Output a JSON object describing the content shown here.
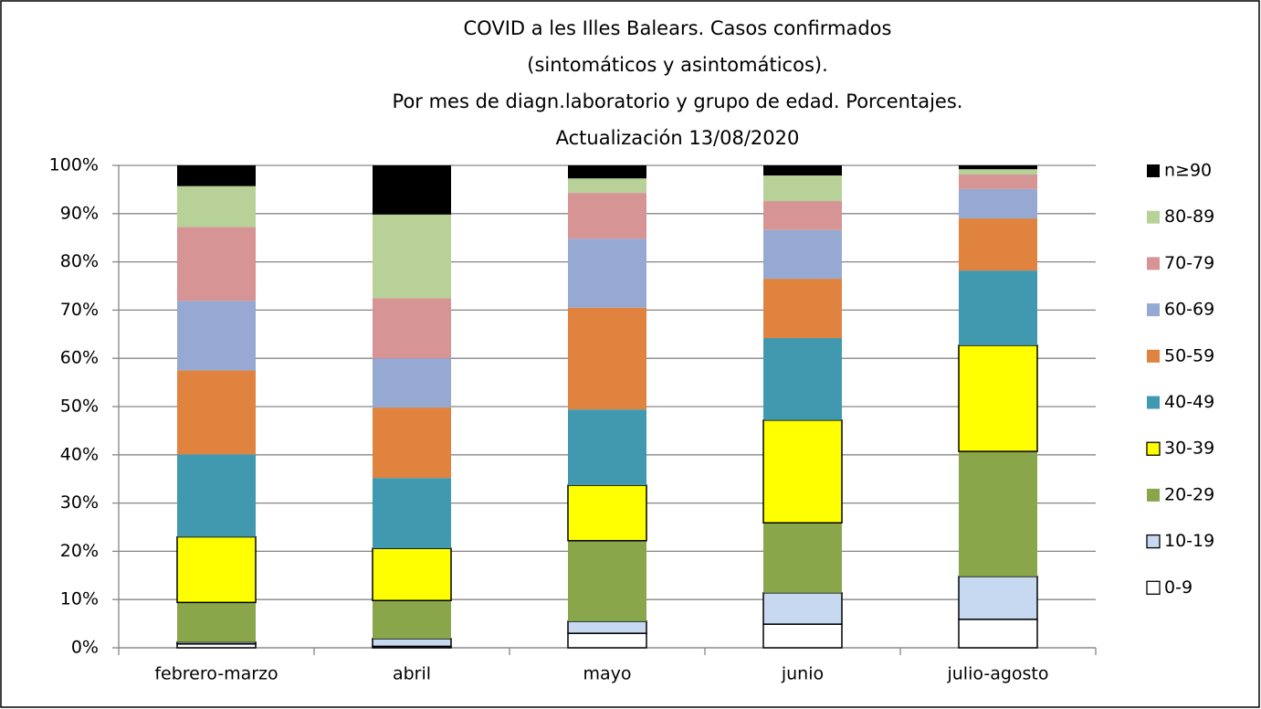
{
  "chart_data": {
    "type": "stacked_bar",
    "title": [
      "COVID a les Illes Balears.  Casos confirmados",
      "(sintomáticos y asintomáticos).",
      "Por mes de diagn.laboratorio  y grupo de edad. Porcentajes.",
      "Actualización  13/08/2020"
    ],
    "categories": [
      "febrero-marzo",
      "abril",
      "mayo",
      "junio",
      "julio-agosto"
    ],
    "series": [
      {
        "name": "0-9",
        "color": "#ffffff",
        "edgecolor": "#000000",
        "values": [
          0.8,
          0.3,
          3.0,
          4.9,
          5.9
        ]
      },
      {
        "name": "10-19",
        "color": "#c6d9f1",
        "edgecolor": "#000000",
        "values": [
          0.4,
          1.6,
          2.5,
          6.5,
          8.9
        ]
      },
      {
        "name": "20-29",
        "color": "#8aa64b",
        "values": [
          8.2,
          7.9,
          16.7,
          14.5,
          25.9
        ]
      },
      {
        "name": "30-39",
        "color": "#ffff00",
        "edgecolor": "#000000",
        "values": [
          13.6,
          10.8,
          11.5,
          21.3,
          22.0
        ]
      },
      {
        "name": "40-49",
        "color": "#4199b0",
        "values": [
          17.1,
          14.6,
          15.7,
          17.0,
          15.5
        ]
      },
      {
        "name": "50-59",
        "color": "#df833e",
        "values": [
          17.4,
          14.6,
          21.1,
          12.3,
          10.8
        ]
      },
      {
        "name": "60-69",
        "color": "#95a9d3",
        "values": [
          14.4,
          10.2,
          14.3,
          10.1,
          6.1
        ]
      },
      {
        "name": "70-79",
        "color": "#d69494",
        "values": [
          15.3,
          12.5,
          9.5,
          6.0,
          3.0
        ]
      },
      {
        "name": "80-89",
        "color": "#b8d198",
        "values": [
          8.5,
          17.3,
          3.0,
          5.3,
          1.1
        ]
      },
      {
        "name": "n≥90",
        "color": "#000000",
        "values": [
          4.3,
          10.2,
          2.7,
          2.1,
          0.8
        ]
      }
    ],
    "ylim": [
      0,
      100
    ],
    "yticks": [
      {
        "value": 0,
        "label": "0%"
      },
      {
        "value": 10,
        "label": "10%"
      },
      {
        "value": 20,
        "label": "20%"
      },
      {
        "value": 30,
        "label": "30%"
      },
      {
        "value": 40,
        "label": "40%"
      },
      {
        "value": 50,
        "label": "50%"
      },
      {
        "value": 60,
        "label": "60%"
      },
      {
        "value": 70,
        "label": "70%"
      },
      {
        "value": 80,
        "label": "80%"
      },
      {
        "value": 90,
        "label": "90%"
      },
      {
        "value": 100,
        "label": "100%"
      }
    ],
    "grid": true,
    "legend": "right"
  }
}
